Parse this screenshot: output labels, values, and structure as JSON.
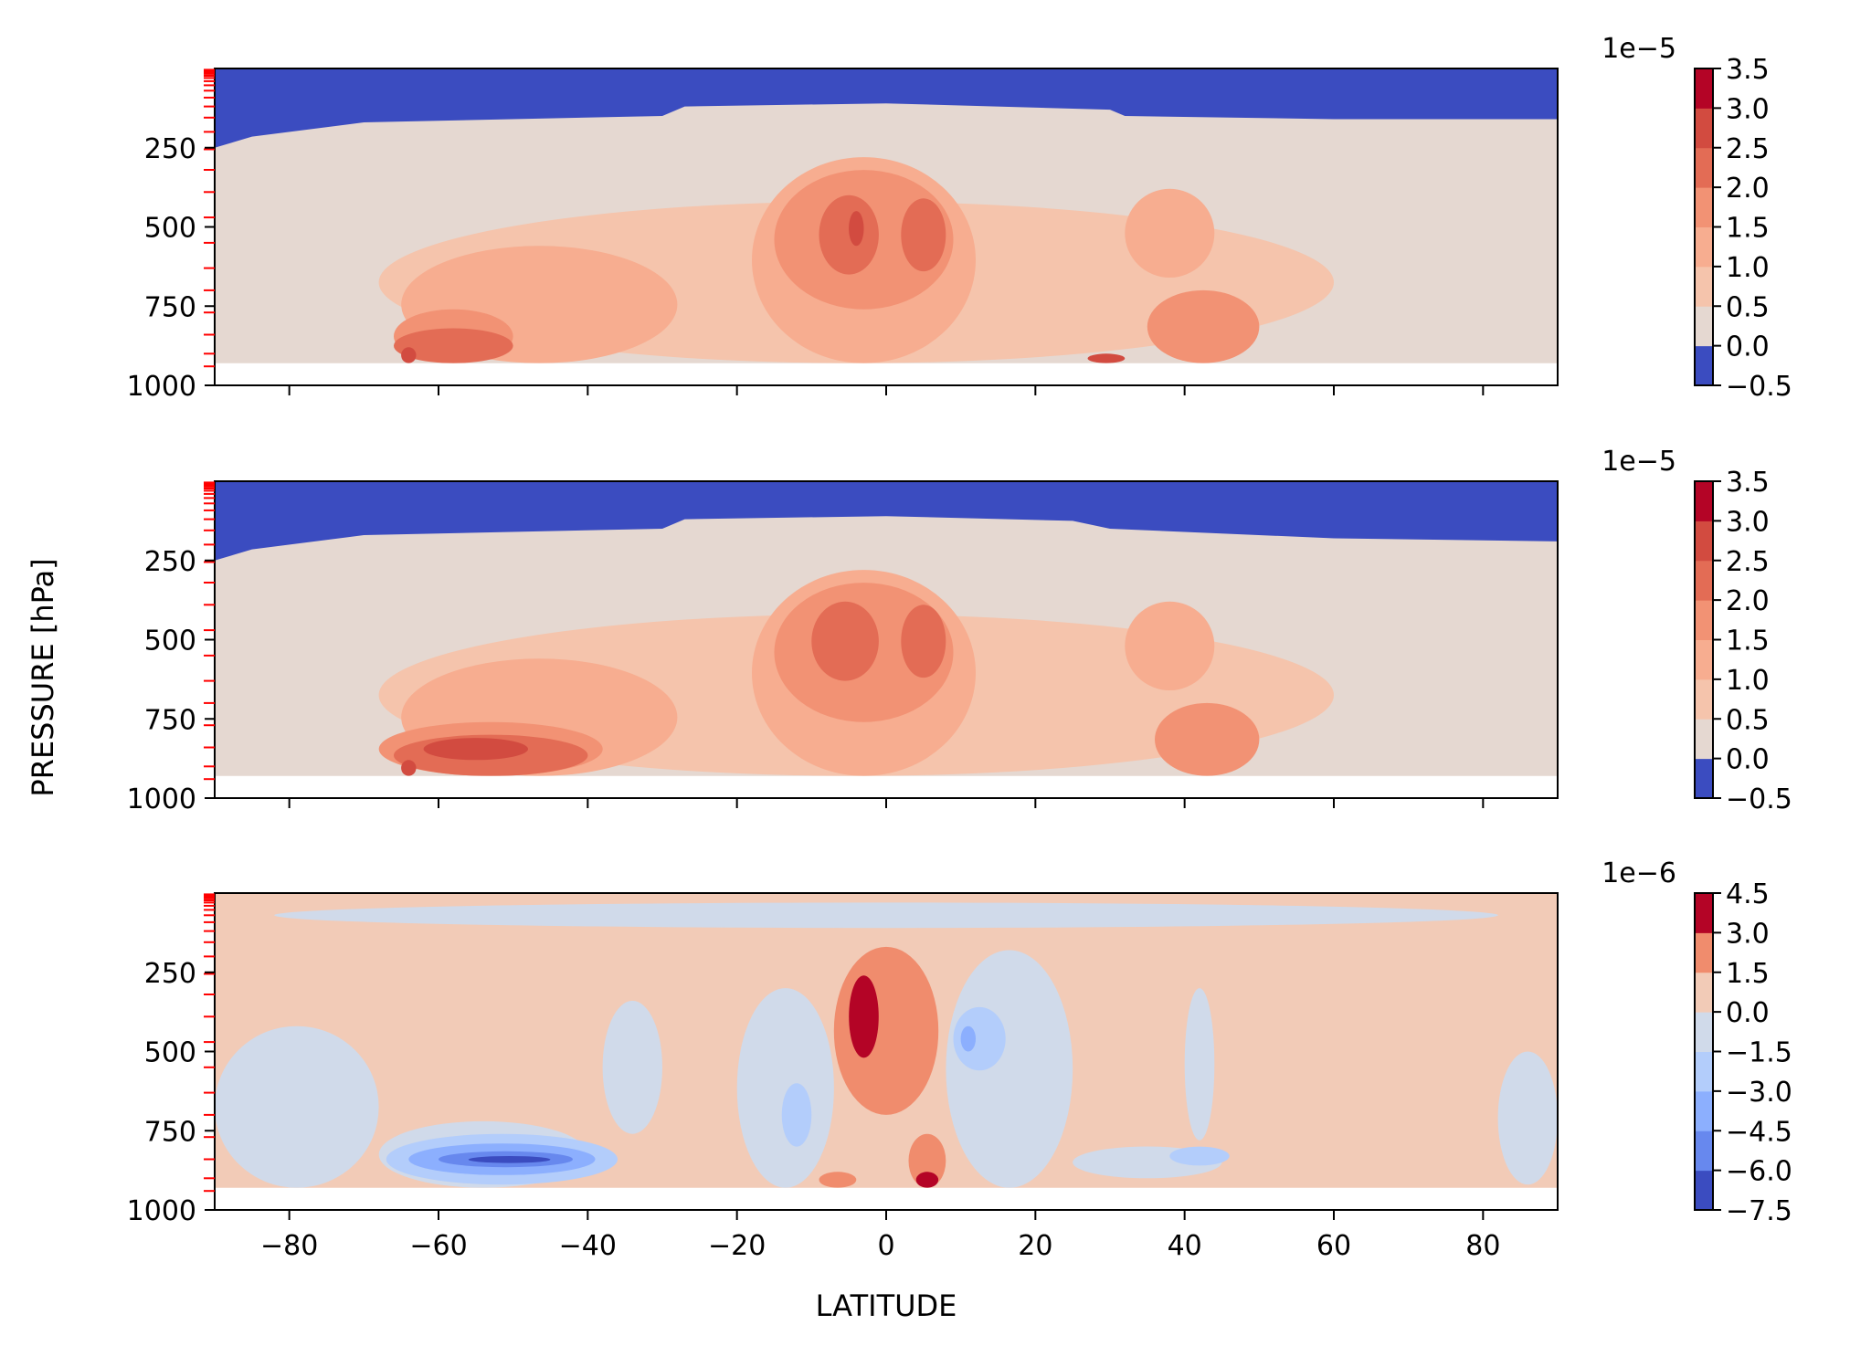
{
  "chart_data": {
    "type": "heatmap",
    "xlabel": "LATITUDE",
    "ylabel": "PRESSURE [hPa]",
    "xlim": [
      -90,
      90
    ],
    "ylim": [
      1000,
      0
    ],
    "x_ticks": [
      "−80",
      "−60",
      "−40",
      "−20",
      "0",
      "20",
      "40",
      "60",
      "80"
    ],
    "x_tick_values": [
      -80,
      -60,
      -40,
      -20,
      0,
      20,
      40,
      60,
      80
    ],
    "y_ticks": [
      "250",
      "500",
      "750",
      "1000"
    ],
    "y_tick_values": [
      250,
      500,
      750,
      1000
    ],
    "model_level_marks_hPa": [
      4,
      8,
      12,
      17,
      23,
      30,
      40,
      53,
      70,
      92,
      120,
      155,
      200,
      255,
      320,
      390,
      470,
      550,
      630,
      700,
      770,
      840,
      900,
      940
    ],
    "panels": [
      {
        "name": "panel-top",
        "colorbar": {
          "offset": "1e−5",
          "tick_labels": [
            "3.5",
            "3.0",
            "2.5",
            "2.0",
            "1.5",
            "1.0",
            "0.5",
            "0.0",
            "−0.5"
          ],
          "levels": [
            -0.5,
            0.0,
            0.5,
            1.0,
            1.5,
            2.0,
            2.5,
            3.0,
            3.5
          ],
          "colors": [
            "#3b4cc0",
            "#e5d8d1",
            "#f5c4ac",
            "#f7ad90",
            "#f29274",
            "#e36c55",
            "#d24b40",
            "#b40426"
          ]
        },
        "features": [
          {
            "kind": "upper_cap",
            "level": 0,
            "base_hPa": [
              [
                -90,
                250
              ],
              [
                -85,
                215
              ],
              [
                -70,
                170
              ],
              [
                -30,
                150
              ],
              [
                -27,
                120
              ],
              [
                0,
                110
              ],
              [
                30,
                130
              ],
              [
                32,
                150
              ],
              [
                60,
                160
              ],
              [
                90,
                160
              ]
            ]
          },
          {
            "kind": "blob",
            "level": 2,
            "lat": [
              -68,
              60
            ],
            "p": [
              420,
              930
            ]
          },
          {
            "kind": "blob",
            "level": 3,
            "lat": [
              -65,
              -28
            ],
            "p": [
              560,
              930
            ]
          },
          {
            "kind": "blob",
            "level": 3,
            "lat": [
              -18,
              12
            ],
            "p": [
              280,
              930
            ]
          },
          {
            "kind": "blob",
            "level": 3,
            "lat": [
              32,
              44
            ],
            "p": [
              380,
              660
            ]
          },
          {
            "kind": "blob",
            "level": 4,
            "lat": [
              -15,
              9
            ],
            "p": [
              320,
              760
            ]
          },
          {
            "kind": "blob",
            "level": 4,
            "lat": [
              -66,
              -50
            ],
            "p": [
              760,
              930
            ]
          },
          {
            "kind": "blob",
            "level": 4,
            "lat": [
              35,
              50
            ],
            "p": [
              700,
              930
            ]
          },
          {
            "kind": "blob",
            "level": 5,
            "lat": [
              -9,
              -1
            ],
            "p": [
              400,
              650
            ]
          },
          {
            "kind": "blob",
            "level": 5,
            "lat": [
              2,
              8
            ],
            "p": [
              410,
              640
            ]
          },
          {
            "kind": "blob",
            "level": 5,
            "lat": [
              -66,
              -50
            ],
            "p": [
              820,
              930
            ]
          },
          {
            "kind": "blob",
            "level": 6,
            "lat": [
              -5,
              -3
            ],
            "p": [
              450,
              560
            ]
          },
          {
            "kind": "blob",
            "level": 6,
            "lat": [
              -65,
              -63
            ],
            "p": [
              880,
              930
            ]
          },
          {
            "kind": "blob",
            "level": 6,
            "lat": [
              27,
              32
            ],
            "p": [
              900,
              930
            ]
          }
        ]
      },
      {
        "name": "panel-middle",
        "colorbar": {
          "offset": "1e−5",
          "tick_labels": [
            "3.5",
            "3.0",
            "2.5",
            "2.0",
            "1.5",
            "1.0",
            "0.5",
            "0.0",
            "−0.5"
          ],
          "levels": [
            -0.5,
            0.0,
            0.5,
            1.0,
            1.5,
            2.0,
            2.5,
            3.0,
            3.5
          ],
          "colors": [
            "#3b4cc0",
            "#e5d8d1",
            "#f5c4ac",
            "#f7ad90",
            "#f29274",
            "#e36c55",
            "#d24b40",
            "#b40426"
          ]
        },
        "features": [
          {
            "kind": "upper_cap",
            "level": 0,
            "base_hPa": [
              [
                -90,
                250
              ],
              [
                -85,
                215
              ],
              [
                -70,
                170
              ],
              [
                -30,
                150
              ],
              [
                -27,
                120
              ],
              [
                0,
                110
              ],
              [
                25,
                125
              ],
              [
                30,
                150
              ],
              [
                60,
                180
              ],
              [
                90,
                190
              ]
            ]
          },
          {
            "kind": "blob",
            "level": 2,
            "lat": [
              -68,
              60
            ],
            "p": [
              420,
              930
            ]
          },
          {
            "kind": "blob",
            "level": 3,
            "lat": [
              -65,
              -28
            ],
            "p": [
              560,
              930
            ]
          },
          {
            "kind": "blob",
            "level": 3,
            "lat": [
              -18,
              12
            ],
            "p": [
              280,
              930
            ]
          },
          {
            "kind": "blob",
            "level": 3,
            "lat": [
              32,
              44
            ],
            "p": [
              380,
              660
            ]
          },
          {
            "kind": "blob",
            "level": 4,
            "lat": [
              -15,
              9
            ],
            "p": [
              320,
              760
            ]
          },
          {
            "kind": "blob",
            "level": 4,
            "lat": [
              -68,
              -38
            ],
            "p": [
              760,
              930
            ]
          },
          {
            "kind": "blob",
            "level": 4,
            "lat": [
              36,
              50
            ],
            "p": [
              700,
              930
            ]
          },
          {
            "kind": "blob",
            "level": 5,
            "lat": [
              -10,
              -1
            ],
            "p": [
              380,
              630
            ]
          },
          {
            "kind": "blob",
            "level": 5,
            "lat": [
              2,
              8
            ],
            "p": [
              390,
              620
            ]
          },
          {
            "kind": "blob",
            "level": 5,
            "lat": [
              -66,
              -40
            ],
            "p": [
              800,
              930
            ]
          },
          {
            "kind": "blob",
            "level": 6,
            "lat": [
              -62,
              -48
            ],
            "p": [
              810,
              880
            ]
          },
          {
            "kind": "blob",
            "level": 6,
            "lat": [
              -65,
              -63
            ],
            "p": [
              880,
              930
            ]
          }
        ]
      },
      {
        "name": "panel-bottom",
        "colorbar": {
          "offset": "1e−6",
          "tick_labels": [
            "4.5",
            "3.0",
            "1.5",
            "0.0",
            "−1.5",
            "−3.0",
            "−4.5",
            "−6.0",
            "−7.5"
          ],
          "levels": [
            -7.5,
            -6.0,
            -4.5,
            -3.0,
            -1.5,
            0.0,
            1.5,
            3.0,
            4.5
          ],
          "colors": [
            "#3b4cc0",
            "#6788ee",
            "#8caffe",
            "#b3cdfb",
            "#d0daea",
            "#f2cbb7",
            "#f08c6d",
            "#b40426"
          ]
        },
        "features": [
          {
            "kind": "background",
            "level": 5
          },
          {
            "kind": "blob",
            "level": 4,
            "lat": [
              -90,
              -68
            ],
            "p": [
              420,
              930
            ]
          },
          {
            "kind": "blob",
            "level": 4,
            "lat": [
              -68,
              -40
            ],
            "p": [
              720,
              930
            ]
          },
          {
            "kind": "blob",
            "level": 4,
            "lat": [
              -38,
              -30
            ],
            "p": [
              340,
              760
            ]
          },
          {
            "kind": "blob",
            "level": 4,
            "lat": [
              -20,
              -7
            ],
            "p": [
              300,
              930
            ]
          },
          {
            "kind": "blob",
            "level": 4,
            "lat": [
              8,
              25
            ],
            "p": [
              180,
              930
            ]
          },
          {
            "kind": "blob",
            "level": 4,
            "lat": [
              25,
              45
            ],
            "p": [
              800,
              900
            ]
          },
          {
            "kind": "blob",
            "level": 4,
            "lat": [
              40,
              44
            ],
            "p": [
              300,
              780
            ]
          },
          {
            "kind": "blob",
            "level": 4,
            "lat": [
              82,
              90
            ],
            "p": [
              500,
              920
            ]
          },
          {
            "kind": "blob",
            "level": 4,
            "lat": [
              -82,
              82
            ],
            "p": [
              30,
              110
            ]
          },
          {
            "kind": "blob",
            "level": 3,
            "lat": [
              -14,
              -10
            ],
            "p": [
              600,
              800
            ]
          },
          {
            "kind": "blob",
            "level": 3,
            "lat": [
              9,
              16
            ],
            "p": [
              360,
              560
            ]
          },
          {
            "kind": "blob",
            "level": 3,
            "lat": [
              -67,
              -36
            ],
            "p": [
              760,
              920
            ]
          },
          {
            "kind": "blob",
            "level": 3,
            "lat": [
              38,
              46
            ],
            "p": [
              800,
              860
            ]
          },
          {
            "kind": "blob",
            "level": 2,
            "lat": [
              -64,
              -39
            ],
            "p": [
              790,
              890
            ]
          },
          {
            "kind": "blob",
            "level": 1,
            "lat": [
              -60,
              -42
            ],
            "p": [
              815,
              865
            ]
          },
          {
            "kind": "blob",
            "level": 0,
            "lat": [
              -56,
              -45
            ],
            "p": [
              830,
              852
            ]
          },
          {
            "kind": "blob",
            "level": 2,
            "lat": [
              10,
              12
            ],
            "p": [
              420,
              500
            ]
          },
          {
            "kind": "blob",
            "level": 6,
            "lat": [
              -7,
              7
            ],
            "p": [
              170,
              700
            ]
          },
          {
            "kind": "blob",
            "level": 6,
            "lat": [
              3,
              8
            ],
            "p": [
              760,
              930
            ]
          },
          {
            "kind": "blob",
            "level": 6,
            "lat": [
              -9,
              -4
            ],
            "p": [
              880,
              930
            ]
          },
          {
            "kind": "blob",
            "level": 7,
            "lat": [
              -5,
              -1
            ],
            "p": [
              260,
              520
            ]
          },
          {
            "kind": "blob",
            "level": 7,
            "lat": [
              4,
              7
            ],
            "p": [
              880,
              930
            ]
          }
        ]
      }
    ]
  }
}
